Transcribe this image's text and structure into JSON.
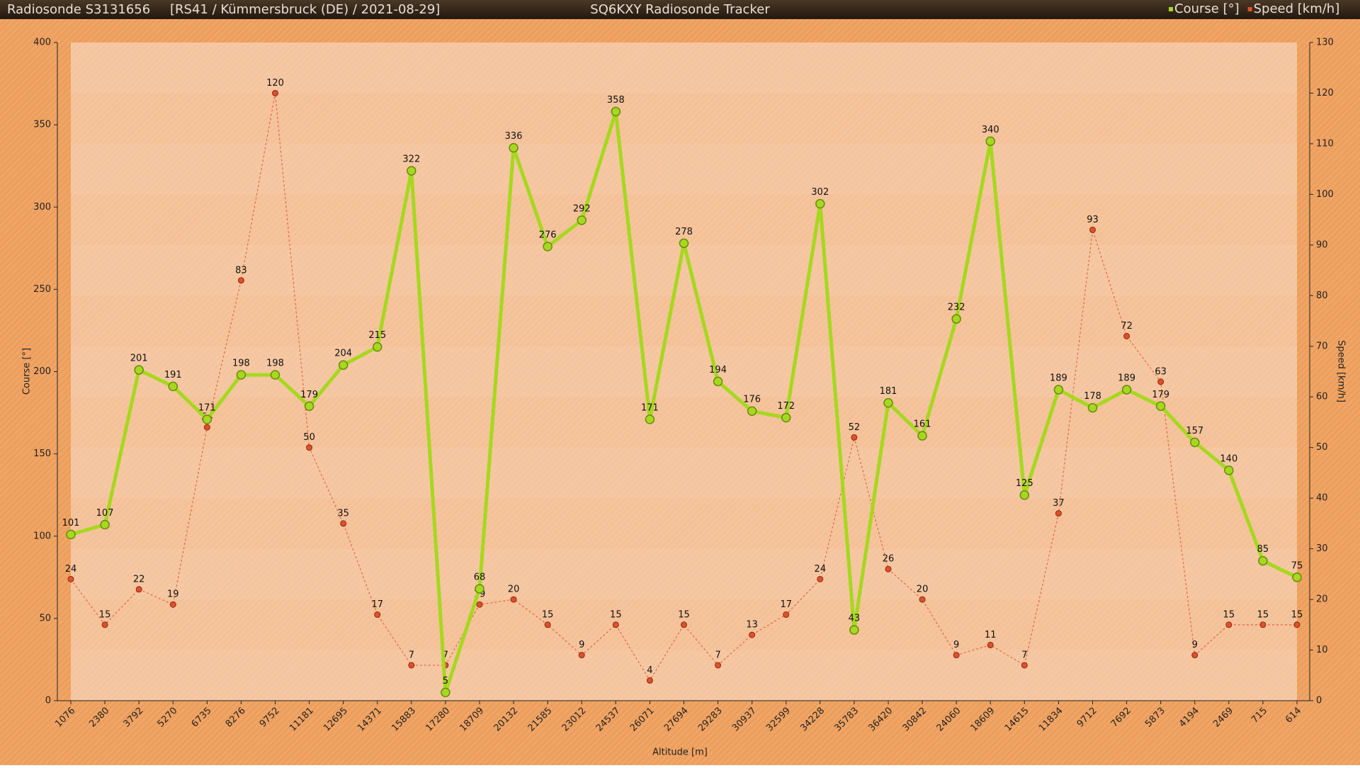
{
  "chart_data": {
    "type": "line",
    "header_left": "Radiosonde S3131656",
    "header_info": "[RS41 / Kümmersbruck (DE) / 2021-08-29]",
    "title": "SQ6KXY Radiosonde Tracker",
    "x_label": "Altitude [m]",
    "y_label": "Course [°]",
    "y2_label": "Speed [km/h]",
    "categories": [
      "1076",
      "2380",
      "3792",
      "5270",
      "6735",
      "8276",
      "9752",
      "11181",
      "12695",
      "14371",
      "15883",
      "17280",
      "18709",
      "20132",
      "21585",
      "23012",
      "24537",
      "26071",
      "27694",
      "29283",
      "30937",
      "32599",
      "34228",
      "35783",
      "36420",
      "30842",
      "24060",
      "18609",
      "14615",
      "11834",
      "9712",
      "7692",
      "5873",
      "4194",
      "2469",
      "715",
      "614"
    ],
    "series": [
      {
        "name": "Course [°]",
        "color": "#a6d81e",
        "values": [
          101,
          107,
          201,
          191,
          171,
          198,
          198,
          179,
          204,
          215,
          322,
          5,
          68,
          336,
          276,
          292,
          358,
          171,
          278,
          194,
          176,
          172,
          302,
          43,
          181,
          161,
          232,
          340,
          125,
          189,
          178,
          189,
          179,
          157,
          140,
          85,
          75
        ]
      },
      {
        "name": "Speed [km/h]",
        "color": "#e0502a",
        "axis": "y2",
        "values": [
          24,
          15,
          22,
          19,
          54,
          83,
          120,
          50,
          35,
          17,
          7,
          7,
          19,
          20,
          15,
          9,
          15,
          4,
          15,
          7,
          13,
          17,
          24,
          52,
          26,
          20,
          9,
          11,
          7,
          37,
          93,
          72,
          63,
          9,
          15,
          15,
          15
        ]
      }
    ],
    "ylim": [
      0,
      400
    ],
    "yticks": [
      0,
      50,
      100,
      150,
      200,
      250,
      300,
      350,
      400
    ],
    "y2lim": [
      0,
      130
    ],
    "y2ticks": [
      0,
      10,
      20,
      30,
      40,
      50,
      60,
      70,
      80,
      90,
      100,
      110,
      120,
      130
    ]
  }
}
